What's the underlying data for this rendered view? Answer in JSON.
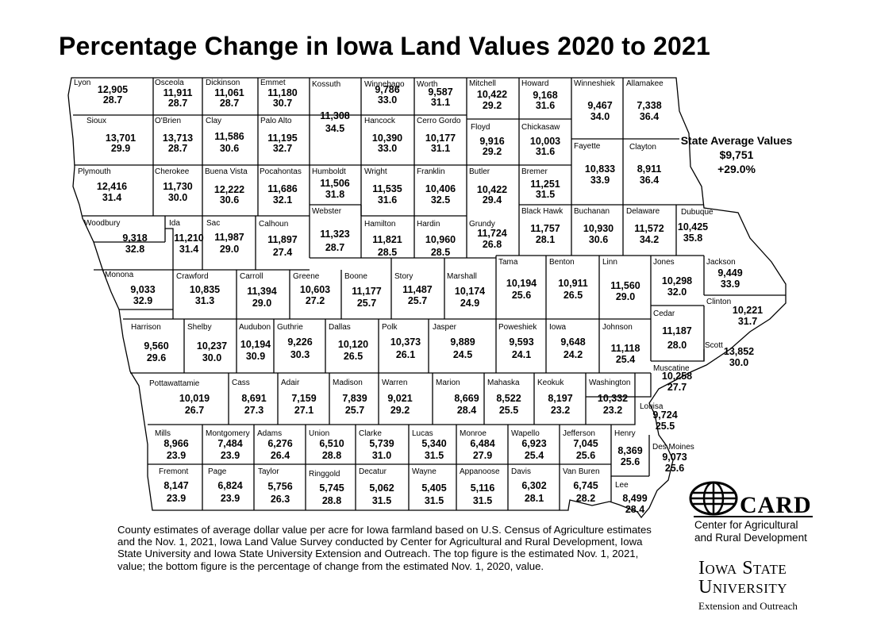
{
  "title": "Percentage Change in Iowa Land Values 2020 to 2021",
  "state_average": {
    "label": "State Average Values",
    "value": "$9,751",
    "change": "+29.0%"
  },
  "note": "County estimates of average dollar value per acre for Iowa farmland based on U.S. Census of Agriculture estimates and the Nov. 1, 2021, Iowa Land Value Survey conducted by Center for Agricultural and Rural Development, Iowa State University and Iowa State University Extension and Outreach. The top figure is the estimated Nov. 1, 2021, value; the bottom figure is the percentage of change from the estimated Nov. 1, 2020, value.",
  "card": {
    "name": "CARD",
    "line1": "Center for Agricultural",
    "line2": "and Rural Development"
  },
  "isu": {
    "line1": "Iowa State",
    "line2": "University",
    "line3": "Extension and Outreach"
  },
  "colors": {
    "line": "#000000",
    "background": "#ffffff"
  },
  "counties": [
    {
      "name": "Lyon",
      "value": "12,905",
      "change": "28.7"
    },
    {
      "name": "Osceola",
      "value": "11,911",
      "change": "28.7"
    },
    {
      "name": "Dickinson",
      "value": "11,061",
      "change": "28.7"
    },
    {
      "name": "Emmet",
      "value": "11,180",
      "change": "30.7"
    },
    {
      "name": "Kossuth",
      "value": "11,308",
      "change": "34.5"
    },
    {
      "name": "Winnebago",
      "value": "9,786",
      "change": "33.0"
    },
    {
      "name": "Worth",
      "value": "9,587",
      "change": "31.1"
    },
    {
      "name": "Mitchell",
      "value": "10,422",
      "change": "29.2"
    },
    {
      "name": "Howard",
      "value": "9,168",
      "change": "31.6"
    },
    {
      "name": "Winneshiek",
      "value": "9,467",
      "change": "34.0"
    },
    {
      "name": "Allamakee",
      "value": "7,338",
      "change": "36.4"
    },
    {
      "name": "Sioux",
      "value": "13,701",
      "change": "29.9"
    },
    {
      "name": "O'Brien",
      "value": "13,713",
      "change": "28.7"
    },
    {
      "name": "Clay",
      "value": "11,586",
      "change": "30.6"
    },
    {
      "name": "Palo Alto",
      "value": "11,195",
      "change": "32.7"
    },
    {
      "name": "Hancock",
      "value": "10,390",
      "change": "33.0"
    },
    {
      "name": "Cerro Gordo",
      "value": "10,177",
      "change": "31.1"
    },
    {
      "name": "Floyd",
      "value": "9,916",
      "change": "29.2"
    },
    {
      "name": "Chickasaw",
      "value": "10,003",
      "change": "31.6"
    },
    {
      "name": "Fayette",
      "value": "10,833",
      "change": "33.9"
    },
    {
      "name": "Clayton",
      "value": "8,911",
      "change": "36.4"
    },
    {
      "name": "Plymouth",
      "value": "12,416",
      "change": "31.4"
    },
    {
      "name": "Cherokee",
      "value": "11,730",
      "change": "30.0"
    },
    {
      "name": "Buena Vista",
      "value": "12,222",
      "change": "30.6"
    },
    {
      "name": "Pocahontas",
      "value": "11,686",
      "change": "32.1"
    },
    {
      "name": "Humboldt",
      "value": "11,506",
      "change": "31.8"
    },
    {
      "name": "Wright",
      "value": "11,535",
      "change": "31.6"
    },
    {
      "name": "Franklin",
      "value": "10,406",
      "change": "32.5"
    },
    {
      "name": "Butler",
      "value": "10,422",
      "change": "29.4"
    },
    {
      "name": "Bremer",
      "value": "11,251",
      "change": "31.5"
    },
    {
      "name": "Webster",
      "value": "11,323",
      "change": "28.7"
    },
    {
      "name": "Black Hawk",
      "value": "11,757",
      "change": "28.1"
    },
    {
      "name": "Buchanan",
      "value": "10,930",
      "change": "30.6"
    },
    {
      "name": "Delaware",
      "value": "11,572",
      "change": "34.2"
    },
    {
      "name": "Dubuque",
      "value": "10,425",
      "change": "35.8"
    },
    {
      "name": "Woodbury",
      "value": "9,318",
      "change": "32.8"
    },
    {
      "name": "Ida",
      "value": "11,210",
      "change": "31.4"
    },
    {
      "name": "Sac",
      "value": "11,987",
      "change": "29.0"
    },
    {
      "name": "Calhoun",
      "value": "11,897",
      "change": "27.4"
    },
    {
      "name": "Hamilton",
      "value": "11,821",
      "change": "28.5"
    },
    {
      "name": "Hardin",
      "value": "10,960",
      "change": "28.5"
    },
    {
      "name": "Grundy",
      "value": "11,724",
      "change": "26.8"
    },
    {
      "name": "Tama",
      "value": "10,194",
      "change": "25.6"
    },
    {
      "name": "Benton",
      "value": "10,911",
      "change": "26.5"
    },
    {
      "name": "Linn",
      "value": "11,560",
      "change": "29.0"
    },
    {
      "name": "Jones",
      "value": "10,298",
      "change": "32.0"
    },
    {
      "name": "Jackson",
      "value": "9,449",
      "change": "33.9"
    },
    {
      "name": "Monona",
      "value": "9,033",
      "change": "32.9"
    },
    {
      "name": "Crawford",
      "value": "10,835",
      "change": "31.3"
    },
    {
      "name": "Carroll",
      "value": "11,394",
      "change": "29.0"
    },
    {
      "name": "Greene",
      "value": "10,603",
      "change": "27.2"
    },
    {
      "name": "Boone",
      "value": "11,177",
      "change": "25.7"
    },
    {
      "name": "Story",
      "value": "11,487",
      "change": "25.7"
    },
    {
      "name": "Marshall",
      "value": "10,174",
      "change": "24.9"
    },
    {
      "name": "Clinton",
      "value": "10,221",
      "change": "31.7"
    },
    {
      "name": "Cedar",
      "value": "11,187",
      "change": "28.0"
    },
    {
      "name": "Harrison",
      "value": "9,560",
      "change": "29.6"
    },
    {
      "name": "Shelby",
      "value": "10,237",
      "change": "30.0"
    },
    {
      "name": "Audubon",
      "value": "10,194",
      "change": "30.9"
    },
    {
      "name": "Guthrie",
      "value": "9,226",
      "change": "30.3"
    },
    {
      "name": "Dallas",
      "value": "10,120",
      "change": "26.5"
    },
    {
      "name": "Polk",
      "value": "10,373",
      "change": "26.1"
    },
    {
      "name": "Jasper",
      "value": "9,889",
      "change": "24.5"
    },
    {
      "name": "Poweshiek",
      "value": "9,593",
      "change": "24.1"
    },
    {
      "name": "Iowa",
      "value": "9,648",
      "change": "24.2"
    },
    {
      "name": "Johnson",
      "value": "11,118",
      "change": "25.4"
    },
    {
      "name": "Scott",
      "value": "13,852",
      "change": "30.0"
    },
    {
      "name": "Muscatine",
      "value": "10,258",
      "change": "27.7"
    },
    {
      "name": "Pottawattamie",
      "value": "10,019",
      "change": "26.7"
    },
    {
      "name": "Cass",
      "value": "8,691",
      "change": "27.3"
    },
    {
      "name": "Adair",
      "value": "7,159",
      "change": "27.1"
    },
    {
      "name": "Madison",
      "value": "7,839",
      "change": "25.7"
    },
    {
      "name": "Warren",
      "value": "9,021",
      "change": "29.2"
    },
    {
      "name": "Marion",
      "value": "8,669",
      "change": "28.4"
    },
    {
      "name": "Mahaska",
      "value": "8,522",
      "change": "25.5"
    },
    {
      "name": "Keokuk",
      "value": "8,197",
      "change": "23.2"
    },
    {
      "name": "Washington",
      "value": "10,332",
      "change": "23.2"
    },
    {
      "name": "Louisa",
      "value": "9,724",
      "change": "25.5"
    },
    {
      "name": "Mills",
      "value": "8,966",
      "change": "23.9"
    },
    {
      "name": "Montgomery",
      "value": "7,484",
      "change": "23.9"
    },
    {
      "name": "Adams",
      "value": "6,276",
      "change": "26.4"
    },
    {
      "name": "Union",
      "value": "6,510",
      "change": "28.8"
    },
    {
      "name": "Clarke",
      "value": "5,739",
      "change": "31.0"
    },
    {
      "name": "Lucas",
      "value": "5,340",
      "change": "31.5"
    },
    {
      "name": "Monroe",
      "value": "6,484",
      "change": "27.9"
    },
    {
      "name": "Wapello",
      "value": "6,923",
      "change": "25.4"
    },
    {
      "name": "Jefferson",
      "value": "7,045",
      "change": "25.6"
    },
    {
      "name": "Henry",
      "value": "8,369",
      "change": "25.6"
    },
    {
      "name": "Des Moines",
      "value": "9,073",
      "change": "25.6"
    },
    {
      "name": "Fremont",
      "value": "8,147",
      "change": "23.9"
    },
    {
      "name": "Page",
      "value": "6,824",
      "change": "23.9"
    },
    {
      "name": "Taylor",
      "value": "5,756",
      "change": "26.3"
    },
    {
      "name": "Ringgold",
      "value": "5,745",
      "change": "28.8"
    },
    {
      "name": "Decatur",
      "value": "5,062",
      "change": "31.5"
    },
    {
      "name": "Wayne",
      "value": "5,405",
      "change": "31.5"
    },
    {
      "name": "Appanoose",
      "value": "5,116",
      "change": "31.5"
    },
    {
      "name": "Davis",
      "value": "6,302",
      "change": "28.1"
    },
    {
      "name": "Van Buren",
      "value": "6,745",
      "change": "28.2"
    },
    {
      "name": "Lee",
      "value": "8,499",
      "change": "28.4"
    }
  ]
}
